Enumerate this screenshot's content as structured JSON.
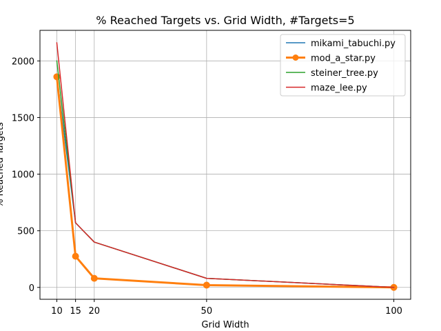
{
  "chart_data": {
    "type": "line",
    "title": "% Reached Targets vs. Grid Width, #Targets=5",
    "xlabel": "Grid Width",
    "ylabel": "% Reached Targets",
    "xlim": [
      5.5,
      104.5
    ],
    "ylim": [
      -105,
      2270
    ],
    "xticks": [
      10,
      15,
      20,
      50,
      100
    ],
    "yticks": [
      0,
      500,
      1000,
      1500,
      2000
    ],
    "grid": true,
    "legend_position": "top-right",
    "x": [
      10,
      15,
      20,
      50,
      100
    ],
    "series": [
      {
        "name": "mikami_tabuchi.py",
        "values": [
          1870,
          570,
          400,
          80,
          0
        ],
        "color": "#1f77b4",
        "marker": false,
        "linewidth": 1
      },
      {
        "name": "mod_a_star.py",
        "values": [
          1860,
          275,
          80,
          20,
          0
        ],
        "color": "#ff7f0e",
        "marker": true,
        "linewidth": 2
      },
      {
        "name": "steiner_tree.py",
        "values": [
          2000,
          570,
          400,
          80,
          0
        ],
        "color": "#2ca02c",
        "marker": false,
        "linewidth": 1
      },
      {
        "name": "maze_lee.py",
        "values": [
          2160,
          570,
          400,
          80,
          0
        ],
        "color": "#d62728",
        "marker": false,
        "linewidth": 1
      }
    ]
  }
}
